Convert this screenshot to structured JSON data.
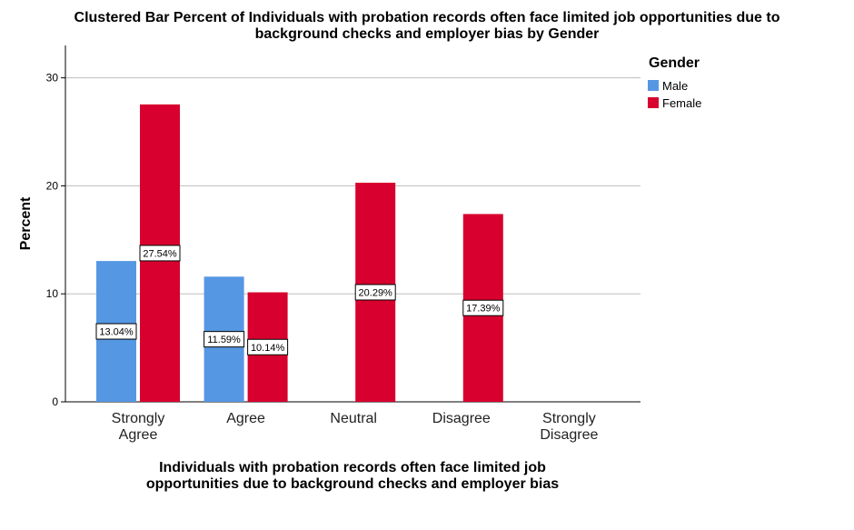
{
  "chart_data": {
    "type": "bar",
    "title_lines": [
      "Clustered Bar Percent of Individuals with probation records often face limited job opportunities due to",
      "background checks and employer bias by Gender"
    ],
    "xlabel_lines": [
      "Individuals with probation records often face limited job",
      "opportunities due to background checks and employer bias"
    ],
    "ylabel": "Percent",
    "ylim": [
      0,
      33
    ],
    "yticks": [
      0,
      10,
      20,
      30
    ],
    "grid": true,
    "legend_title": "Gender",
    "legend_position": "top-right",
    "categories": [
      [
        "Strongly",
        "Agree"
      ],
      [
        "Agree"
      ],
      [
        "Neutral"
      ],
      [
        "Disagree"
      ],
      [
        "Strongly",
        "Disagree"
      ]
    ],
    "series": [
      {
        "name": "Male",
        "color": "#5597e2",
        "values": [
          13.04,
          11.59,
          null,
          null,
          null
        ],
        "labels": [
          "13.04%",
          "11.59%",
          null,
          null,
          null
        ]
      },
      {
        "name": "Female",
        "color": "#d7002e",
        "values": [
          27.54,
          10.14,
          20.29,
          17.39,
          null
        ],
        "labels": [
          "27.54%",
          "10.14%",
          "20.29%",
          "17.39%",
          null
        ]
      }
    ]
  }
}
